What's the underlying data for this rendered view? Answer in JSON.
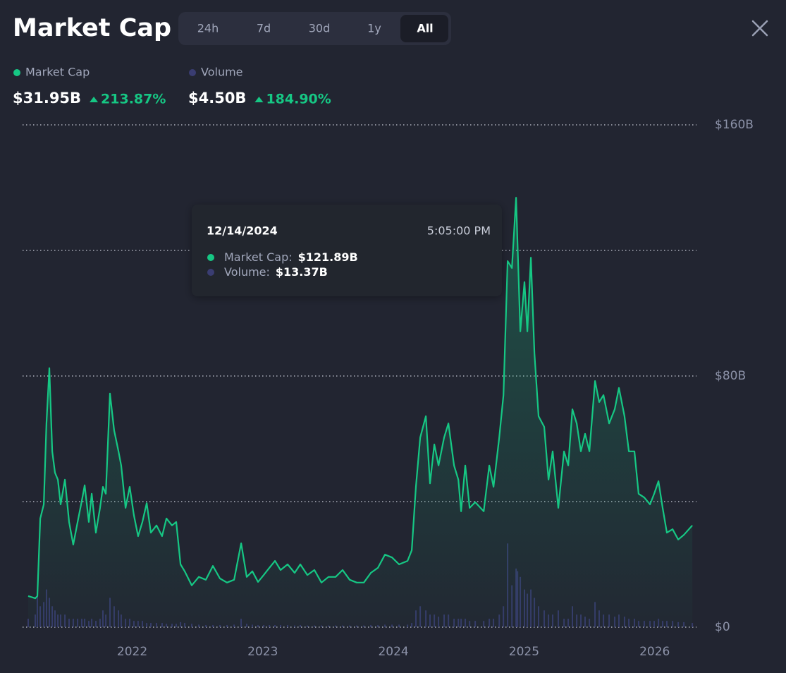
{
  "header": {
    "title": "Market Cap",
    "timeframes": [
      "24h",
      "7d",
      "30d",
      "1y",
      "All"
    ],
    "active_timeframe": 4,
    "stats": [
      {
        "value": "$31.95B",
        "change": "213.87%"
      },
      {
        "value": "$4.50B",
        "change": "184.90%"
      }
    ]
  },
  "tooltip": {
    "date": "12/14/2024",
    "time": "5:05:00 PM",
    "rows": [
      {
        "label": "Market Cap:",
        "value": "$121.89B"
      },
      {
        "label": "Volume:",
        "value": "$13.37B"
      }
    ]
  },
  "chart_data": {
    "type": "line",
    "x": [
      2021.204,
      2021.258,
      2021.274,
      2021.296,
      2021.323,
      2021.344,
      2021.366,
      2021.388,
      2021.409,
      2021.431,
      2021.452,
      2021.485,
      2021.517,
      2021.549,
      2021.582,
      2021.614,
      2021.636,
      2021.668,
      2021.69,
      2021.722,
      2021.754,
      2021.776,
      2021.798,
      2021.83,
      2021.862,
      2021.895,
      2021.916,
      2021.949,
      2021.981,
      2022.013,
      2022.045,
      2022.078,
      2022.111,
      2022.143,
      2022.186,
      2022.229,
      2022.262,
      2022.305,
      2022.337,
      2022.37,
      2022.402,
      2022.456,
      2022.51,
      2022.564,
      2022.618,
      2022.672,
      2022.726,
      2022.78,
      2022.834,
      2022.877,
      2022.92,
      2022.963,
      2023.007,
      2023.05,
      2023.093,
      2023.136,
      2023.19,
      2023.244,
      2023.287,
      2023.341,
      2023.395,
      2023.449,
      2023.503,
      2023.557,
      2023.611,
      2023.665,
      2023.719,
      2023.773,
      2023.827,
      2023.881,
      2023.935,
      2023.989,
      2024.043,
      2024.108,
      2024.14,
      2024.172,
      2024.205,
      2024.248,
      2024.28,
      2024.313,
      2024.345,
      2024.388,
      2024.421,
      2024.464,
      2024.497,
      2024.518,
      2024.55,
      2024.583,
      2024.626,
      2024.691,
      2024.734,
      2024.766,
      2024.81,
      2024.842,
      2024.874,
      2024.907,
      2024.939,
      2024.95,
      2024.971,
      2025.003,
      2025.025,
      2025.052,
      2025.079,
      2025.111,
      2025.154,
      2025.187,
      2025.219,
      2025.262,
      2025.306,
      2025.338,
      2025.37,
      2025.403,
      2025.435,
      2025.467,
      2025.5,
      2025.543,
      2025.575,
      2025.608,
      2025.651,
      2025.694,
      2025.726,
      2025.769,
      2025.802,
      2025.845,
      2025.877,
      2025.92,
      2025.964,
      2025.996,
      2026.029,
      2026.061,
      2026.093,
      2026.137,
      2026.18,
      2026.223,
      2026.288
    ],
    "series": [
      {
        "name": "Market Cap",
        "color": "#16c784",
        "values": [
          9.9,
          9.2,
          9.9,
          34.6,
          39.1,
          64.9,
          82.5,
          56.0,
          49.2,
          47.0,
          39.1,
          47.0,
          33.5,
          26.3,
          33.5,
          40.2,
          45.2,
          33.5,
          42.5,
          30.1,
          38.0,
          44.7,
          42.5,
          74.4,
          62.7,
          56.0,
          51.5,
          38.0,
          44.7,
          35.7,
          29.0,
          33.5,
          39.5,
          30.1,
          32.4,
          29.0,
          34.6,
          32.4,
          33.5,
          20.0,
          17.8,
          13.3,
          16.0,
          15.1,
          19.5,
          15.5,
          14.2,
          15.1,
          26.7,
          16.0,
          17.8,
          14.4,
          16.6,
          18.9,
          21.1,
          18.2,
          20.0,
          17.3,
          20.0,
          16.6,
          18.2,
          14.2,
          16.0,
          16.0,
          18.2,
          15.1,
          14.2,
          14.2,
          17.3,
          18.9,
          23.1,
          22.2,
          20.0,
          21.1,
          24.5,
          44.7,
          60.4,
          67.2,
          45.8,
          58.2,
          51.5,
          60.4,
          64.9,
          51.5,
          47.0,
          36.9,
          51.5,
          38.0,
          39.8,
          36.9,
          51.5,
          44.7,
          60.4,
          73.9,
          116.6,
          114.4,
          136.8,
          121.89,
          94.2,
          109.9,
          94.2,
          117.7,
          87.4,
          67.2,
          63.8,
          47.0,
          56.0,
          38.0,
          56.0,
          51.5,
          69.4,
          64.9,
          56.0,
          61.6,
          56.0,
          78.4,
          71.7,
          73.9,
          64.9,
          69.4,
          76.2,
          67.2,
          56.0,
          56.0,
          42.5,
          41.3,
          39.1,
          42.5,
          46.5,
          38.0,
          30.1,
          31.2,
          27.9,
          29.4,
          32.4
        ]
      },
      {
        "name": "Volume",
        "color": "#3a3d72",
        "axis": "y2",
        "values": [
          2,
          3,
          8,
          5,
          6,
          9,
          7,
          5,
          4,
          3,
          3,
          3,
          2,
          2,
          2,
          2,
          2,
          1.5,
          2,
          1.5,
          2,
          4,
          3,
          7,
          5,
          4,
          3,
          2,
          2,
          1.5,
          1.5,
          1.5,
          1,
          1,
          1,
          1,
          0.8,
          0.8,
          0.8,
          1.2,
          1,
          0.8,
          0.6,
          0.5,
          0.5,
          0.5,
          0.5,
          0.6,
          2,
          0.8,
          0.6,
          0.5,
          0.5,
          0.5,
          0.5,
          0.5,
          0.5,
          0.4,
          0.5,
          0.4,
          0.4,
          0.4,
          0.4,
          0.4,
          0.4,
          0.4,
          0.4,
          0.4,
          0.5,
          0.5,
          0.6,
          0.6,
          0.6,
          0.6,
          1,
          4,
          5,
          4,
          3,
          3,
          2.5,
          3,
          3,
          2,
          2,
          2,
          2,
          1.5,
          1.5,
          1.5,
          2,
          2,
          3,
          5,
          20,
          10,
          14,
          13.37,
          12,
          9,
          8,
          9,
          7,
          5,
          4,
          3,
          3,
          4,
          2,
          2,
          5,
          3,
          3,
          2.5,
          2,
          6,
          4,
          3,
          3,
          2.5,
          3,
          2.5,
          2,
          2,
          1.5,
          1.5,
          1.5,
          1.5,
          2,
          1.5,
          1.5,
          1.5,
          1.2,
          1.2,
          1
        ]
      }
    ],
    "xlim": [
      2021.15,
      2026.35
    ],
    "xticks": [
      2022,
      2023,
      2024,
      2025,
      2026
    ],
    "ylim": [
      0,
      160
    ],
    "yticks": [
      {
        "value": 0,
        "label": "$0"
      },
      {
        "value": 80,
        "label": "$80B"
      },
      {
        "value": 160,
        "label": "$160B"
      }
    ],
    "ygrid": [
      0,
      40,
      80,
      120,
      160
    ],
    "y2lim": [
      0,
      120
    ]
  }
}
